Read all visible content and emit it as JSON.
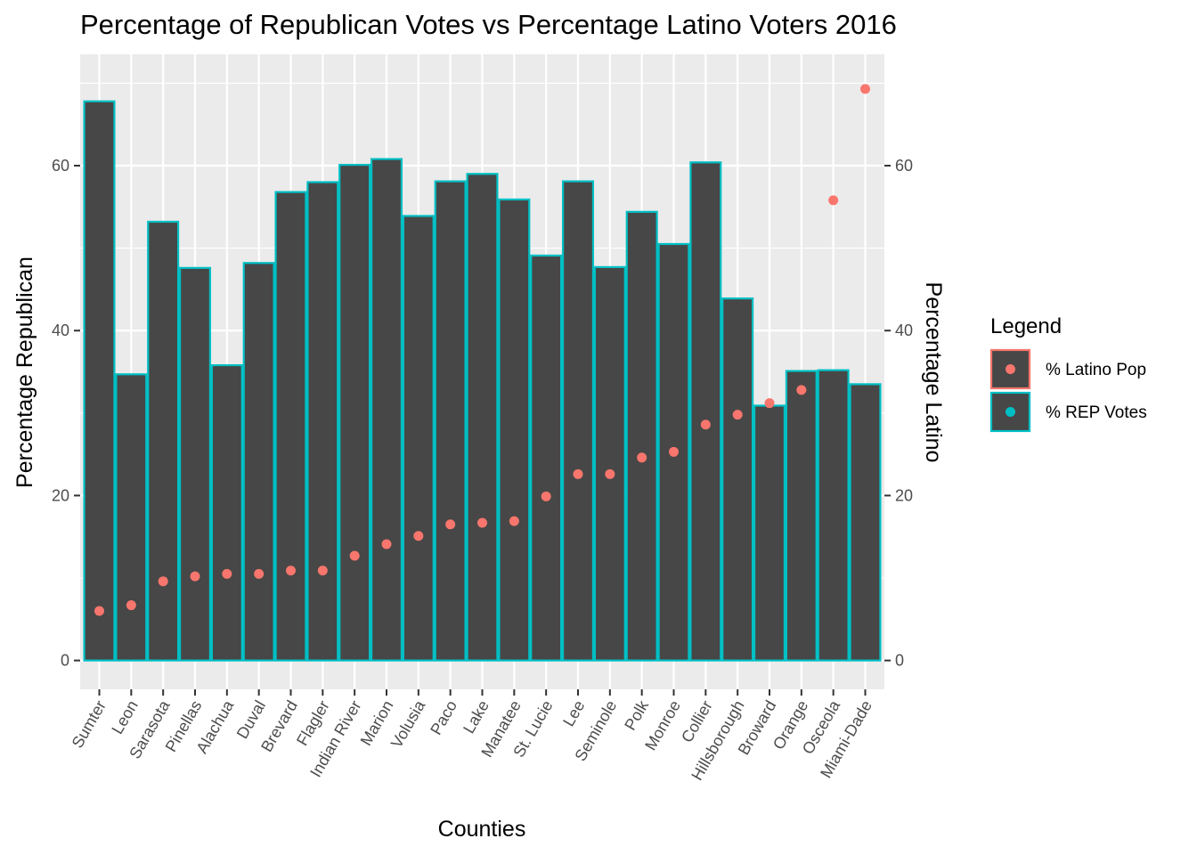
{
  "chart_data": {
    "type": "bar",
    "title": "Percentage of Republican Votes vs Percentage Latino Voters 2016",
    "xlabel": "Counties",
    "ylabel": "Percentage Republican",
    "ylabel_right": "Percentage Latino",
    "ylim": [
      -3.5,
      73.5
    ],
    "y_ticks": [
      0,
      20,
      40,
      60
    ],
    "grid": true,
    "legend": {
      "title": "Legend",
      "placement": "right",
      "items": [
        {
          "label": "% Latino Pop",
          "color": "#f8766d"
        },
        {
          "label": "% REP Votes",
          "color": "#00bfc4"
        }
      ]
    },
    "categories": [
      "Sumter",
      "Leon",
      "Sarasota",
      "Pinellas",
      "Alachua",
      "Duval",
      "Brevard",
      "Flagler",
      "Indian River",
      "Marion",
      "Volusia",
      "Paco",
      "Lake",
      "Manatee",
      "St. Lucie",
      "Lee",
      "Seminole",
      "Polk",
      "Monroe",
      "Collier",
      "Hillsborough",
      "Broward",
      "Orange",
      "Osceola",
      "Miami-Dade"
    ],
    "series": [
      {
        "name": "% REP Votes",
        "kind": "bar",
        "color": "#00bfc4",
        "values": [
          67.8,
          34.7,
          53.2,
          47.6,
          35.8,
          48.2,
          56.8,
          58.0,
          60.1,
          60.8,
          53.9,
          58.1,
          59.0,
          55.9,
          49.1,
          58.1,
          47.7,
          54.4,
          50.5,
          60.4,
          43.9,
          30.9,
          35.1,
          35.2,
          33.5
        ]
      },
      {
        "name": "% Latino Pop",
        "kind": "point",
        "color": "#f8766d",
        "values": [
          6.0,
          6.7,
          9.6,
          10.2,
          10.5,
          10.5,
          10.9,
          10.9,
          12.7,
          14.1,
          15.1,
          16.5,
          16.7,
          16.9,
          19.9,
          22.6,
          22.6,
          24.6,
          25.3,
          28.6,
          29.8,
          31.2,
          32.8,
          55.8,
          69.3
        ]
      }
    ],
    "colors": {
      "panel": "#ebebeb",
      "grid": "#ffffff",
      "bar_fill": "#474747"
    }
  }
}
